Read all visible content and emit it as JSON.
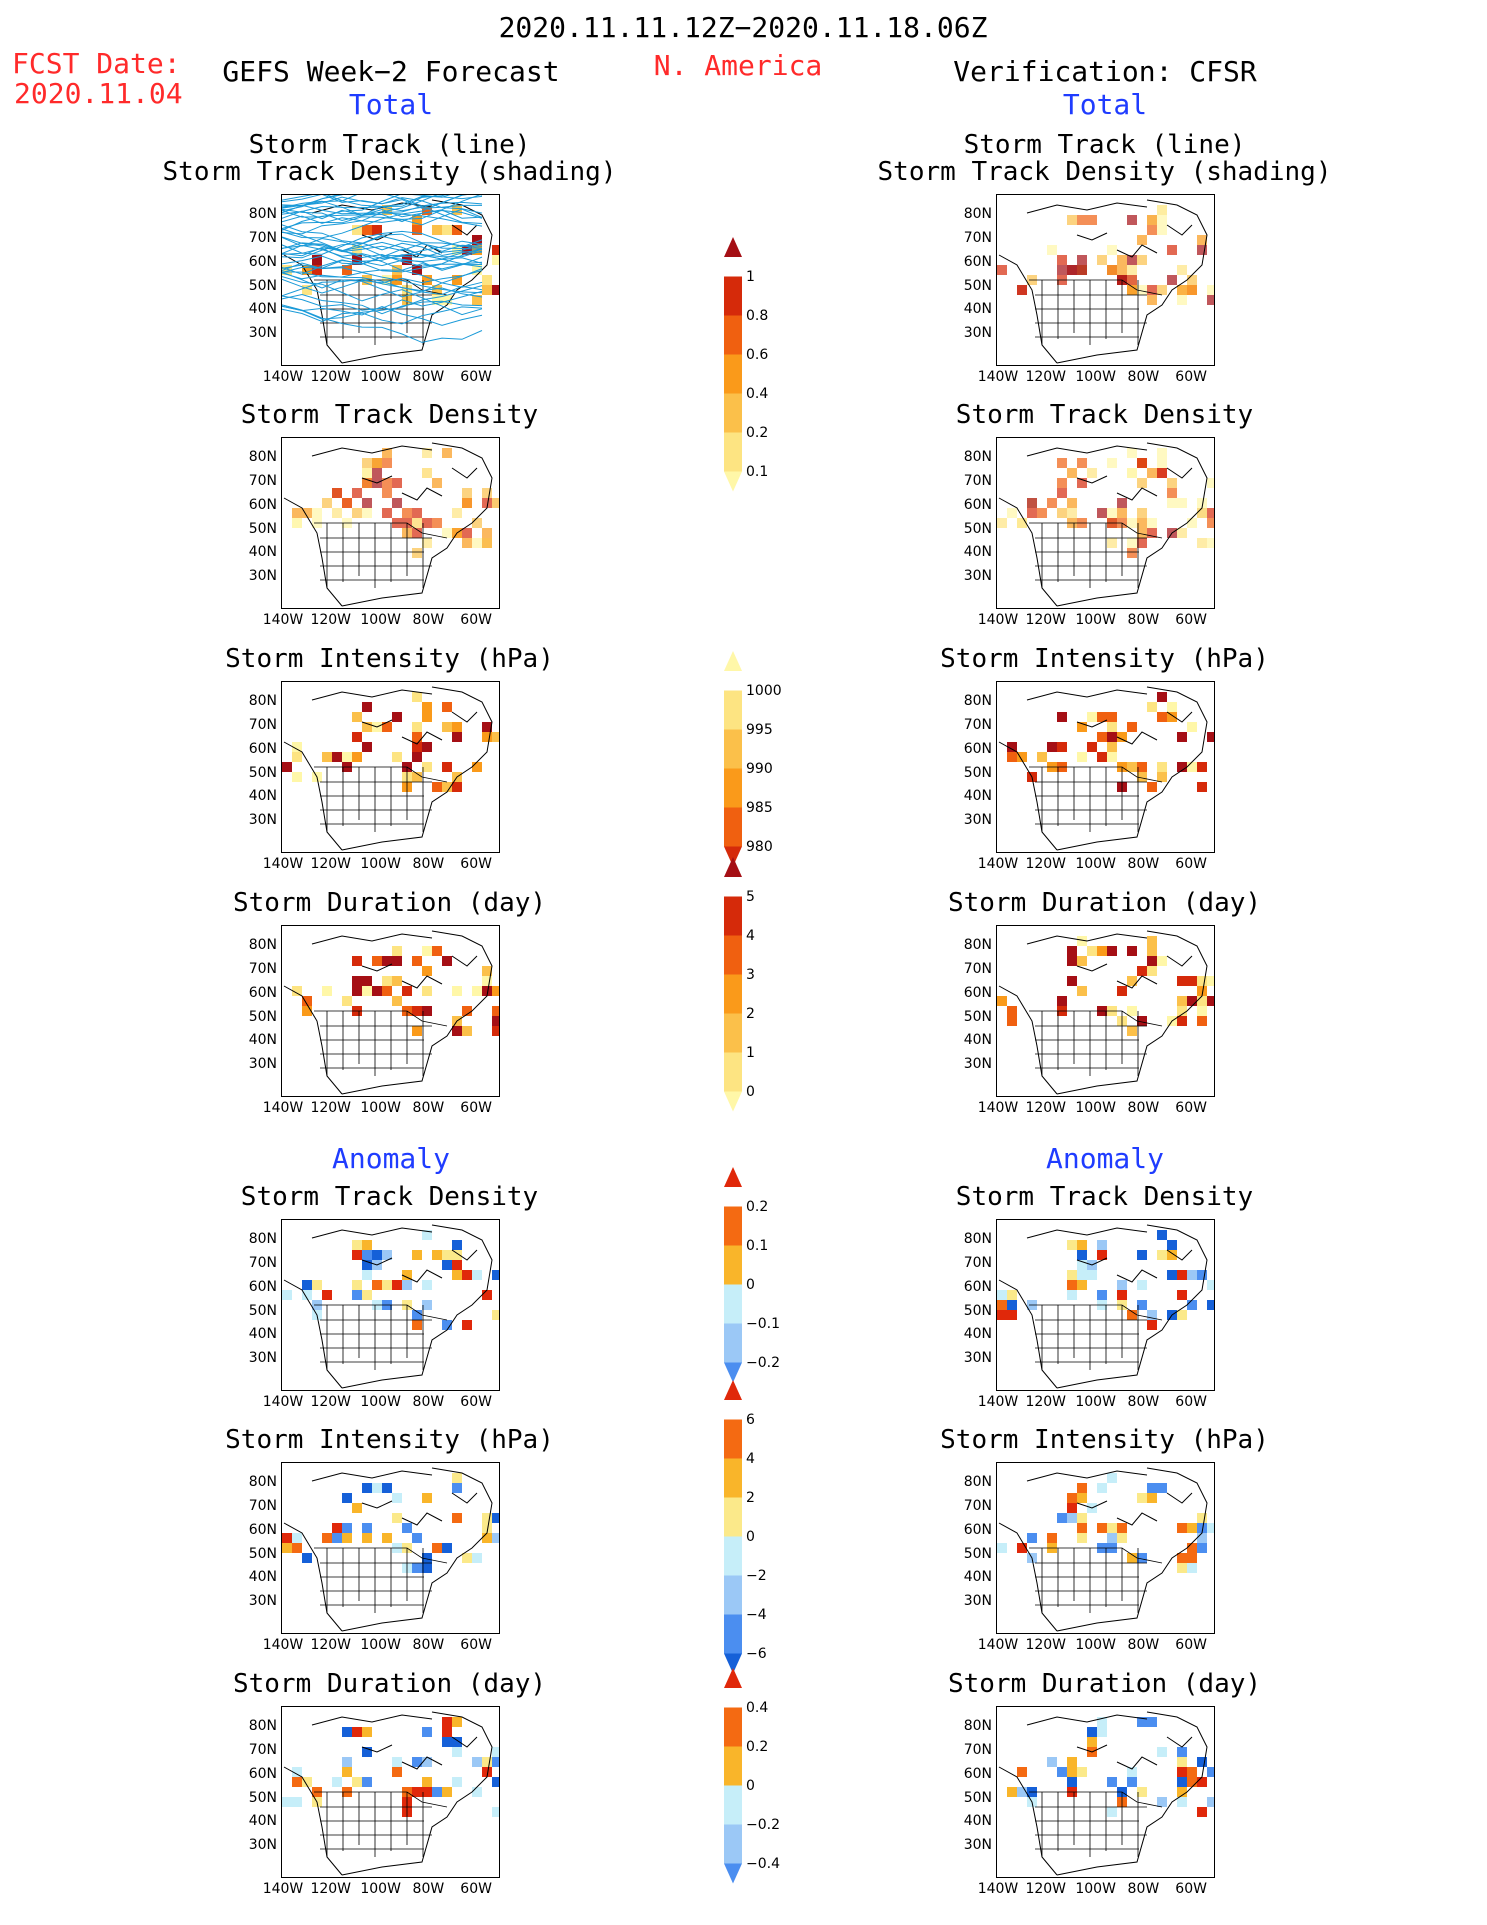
{
  "header": {
    "fcst_label": "FCST Date:",
    "fcst_date": "2020.11.04",
    "period": "2020.11.11.12Z−2020.11.18.06Z",
    "region": "N. America",
    "left_title": "GEFS Week−2 Forecast",
    "right_title": "Verification: CFSR",
    "total_left": "Total",
    "total_right": "Total",
    "anomaly_left": "Anomaly",
    "anomaly_right": "Anomaly"
  },
  "panel_titles": {
    "track_line": "Storm Track (line)",
    "track_density_shading": "Storm Track Density (shading)",
    "track_density": "Storm Track Density",
    "intensity": "Storm Intensity (hPa)",
    "duration": "Storm Duration (day)"
  },
  "axes": {
    "lat_ticks": [
      "80N",
      "70N",
      "60N",
      "50N",
      "40N",
      "30N"
    ],
    "lon_ticks": [
      "140W",
      "120W",
      "100W",
      "80W",
      "60W"
    ]
  },
  "colorbars": {
    "density_total": [
      "1",
      "0.8",
      "0.6",
      "0.4",
      "0.2",
      "0.1"
    ],
    "intensity_total": [
      "1000",
      "995",
      "990",
      "985",
      "980"
    ],
    "duration_total": [
      "5",
      "4",
      "3",
      "2",
      "1",
      "0"
    ],
    "density_anom": [
      "0.2",
      "0.1",
      "0",
      "−0.1",
      "−0.2"
    ],
    "intensity_anom": [
      "6",
      "4",
      "2",
      "0",
      "−2",
      "−4",
      "−6"
    ],
    "duration_anom": [
      "0.4",
      "0.2",
      "0",
      "−0.2",
      "−0.4"
    ]
  },
  "colors": {
    "warm_scale": [
      "#fff7a8",
      "#fde482",
      "#fbc04a",
      "#fa9a1a",
      "#f06010",
      "#d52a0a",
      "#a50f15"
    ],
    "diverging_scale": [
      "#1560d8",
      "#4b8ef0",
      "#9bc8f6",
      "#c6eef9",
      "#fbe98a",
      "#f9b52a",
      "#f46a12",
      "#e0280a"
    ],
    "storm_track_line": "#1a9ad8",
    "header_red": "#ff2a2a",
    "header_blue": "#1f3cff"
  }
}
